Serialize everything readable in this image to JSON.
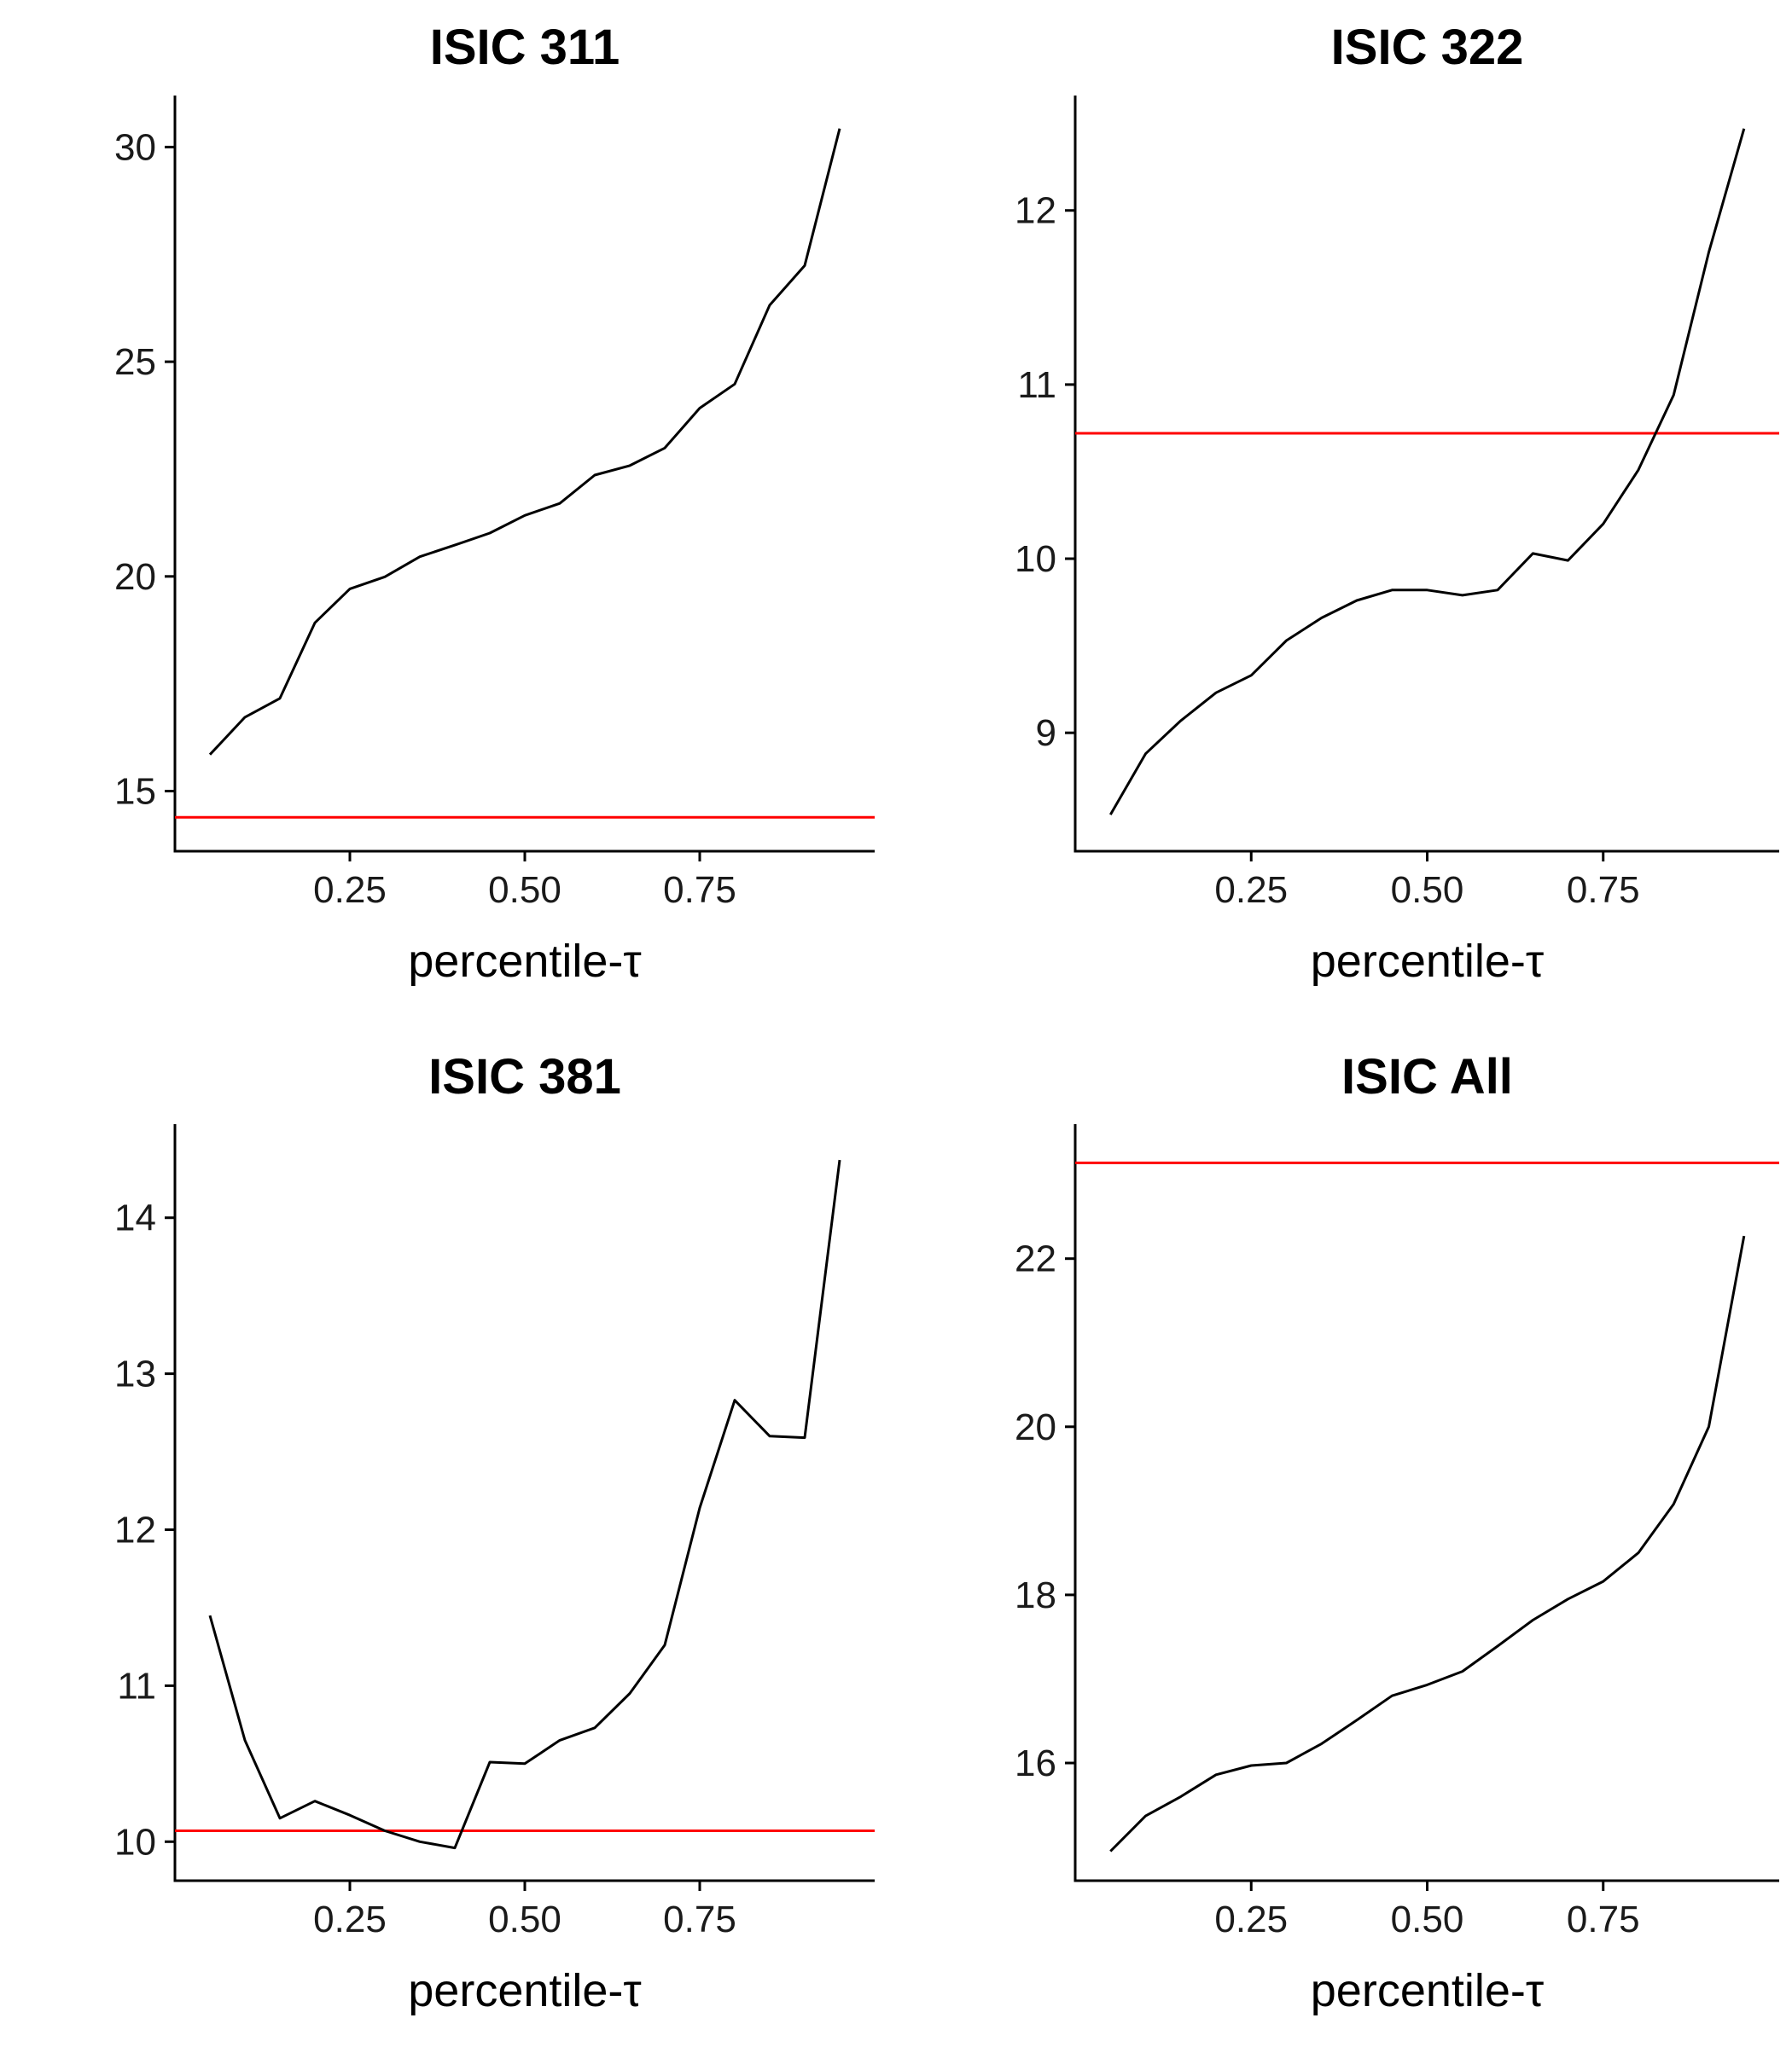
{
  "chart_data": [
    {
      "type": "line",
      "title": "ISIC 311",
      "xlabel": "percentile-τ",
      "ylabel": "",
      "xlim": [
        0,
        1
      ],
      "ylim": [
        13.6,
        31.2
      ],
      "xticks": [
        0.25,
        0.5,
        0.75
      ],
      "xtick_labels": [
        "0.25",
        "0.50",
        "0.75"
      ],
      "yticks": [
        15,
        20,
        25,
        30
      ],
      "ytick_labels": [
        "15",
        "20",
        "25",
        "30"
      ],
      "grid": false,
      "x": [
        0.05,
        0.1,
        0.15,
        0.2,
        0.25,
        0.3,
        0.35,
        0.4,
        0.45,
        0.5,
        0.55,
        0.6,
        0.65,
        0.7,
        0.75,
        0.8,
        0.85,
        0.9,
        0.95
      ],
      "series": [
        {
          "values": [
            15.85,
            16.72,
            17.16,
            18.92,
            19.71,
            19.99,
            20.46,
            20.73,
            21.01,
            21.42,
            21.7,
            22.36,
            22.58,
            22.99,
            23.92,
            24.48,
            26.32,
            27.24,
            30.43
          ],
          "color": "#000000"
        }
      ],
      "reference_line": {
        "y": 14.39,
        "color": "#ff0000"
      }
    },
    {
      "type": "line",
      "title": "ISIC 322",
      "xlabel": "percentile-τ",
      "ylabel": "",
      "xlim": [
        0,
        1
      ],
      "ylim": [
        8.32,
        12.66
      ],
      "xticks": [
        0.25,
        0.5,
        0.75
      ],
      "xtick_labels": [
        "0.25",
        "0.50",
        "0.75"
      ],
      "yticks": [
        9,
        10,
        11,
        12
      ],
      "ytick_labels": [
        "9",
        "10",
        "11",
        "12"
      ],
      "grid": false,
      "x": [
        0.05,
        0.1,
        0.15,
        0.2,
        0.25,
        0.3,
        0.35,
        0.4,
        0.45,
        0.5,
        0.55,
        0.6,
        0.65,
        0.7,
        0.75,
        0.8,
        0.85,
        0.9,
        0.95
      ],
      "series": [
        {
          "values": [
            8.53,
            8.88,
            9.07,
            9.23,
            9.33,
            9.53,
            9.66,
            9.76,
            9.82,
            9.82,
            9.79,
            9.82,
            10.03,
            9.99,
            10.2,
            10.51,
            10.94,
            11.76,
            12.47
          ],
          "color": "#000000"
        }
      ],
      "reference_line": {
        "y": 10.72,
        "color": "#ff0000"
      }
    },
    {
      "type": "line",
      "title": "ISIC 381",
      "xlabel": "percentile-τ",
      "ylabel": "",
      "xlim": [
        0,
        1
      ],
      "ylim": [
        9.75,
        14.6
      ],
      "xticks": [
        0.25,
        0.5,
        0.75
      ],
      "xtick_labels": [
        "0.25",
        "0.50",
        "0.75"
      ],
      "yticks": [
        10,
        11,
        12,
        13,
        14
      ],
      "ytick_labels": [
        "10",
        "11",
        "12",
        "13",
        "14"
      ],
      "grid": false,
      "x": [
        0.05,
        0.1,
        0.15,
        0.2,
        0.25,
        0.3,
        0.35,
        0.4,
        0.45,
        0.5,
        0.55,
        0.6,
        0.65,
        0.7,
        0.75,
        0.8,
        0.85,
        0.9,
        0.95
      ],
      "series": [
        {
          "values": [
            11.45,
            10.65,
            10.15,
            10.26,
            10.17,
            10.07,
            10.0,
            9.96,
            10.51,
            10.5,
            10.65,
            10.73,
            10.95,
            11.26,
            12.14,
            12.83,
            12.6,
            12.59,
            14.37
          ],
          "color": "#000000"
        }
      ],
      "reference_line": {
        "y": 10.07,
        "color": "#ff0000"
      }
    },
    {
      "type": "line",
      "title": "ISIC All",
      "xlabel": "percentile-τ",
      "ylabel": "",
      "xlim": [
        0,
        1
      ],
      "ylim": [
        14.6,
        23.6
      ],
      "xticks": [
        0.25,
        0.5,
        0.75
      ],
      "xtick_labels": [
        "0.25",
        "0.50",
        "0.75"
      ],
      "yticks": [
        16,
        18,
        20,
        22
      ],
      "ytick_labels": [
        "16",
        "18",
        "20",
        "22"
      ],
      "grid": false,
      "x": [
        0.05,
        0.1,
        0.15,
        0.2,
        0.25,
        0.3,
        0.35,
        0.4,
        0.45,
        0.5,
        0.55,
        0.6,
        0.65,
        0.7,
        0.75,
        0.8,
        0.85,
        0.9,
        0.95
      ],
      "series": [
        {
          "values": [
            14.95,
            15.37,
            15.6,
            15.86,
            15.97,
            16.0,
            16.23,
            16.51,
            16.8,
            16.93,
            17.09,
            17.39,
            17.7,
            17.95,
            18.16,
            18.5,
            19.08,
            20.0,
            22.27
          ],
          "color": "#000000"
        }
      ],
      "reference_line": {
        "y": 23.14,
        "color": "#ff0000"
      }
    }
  ]
}
